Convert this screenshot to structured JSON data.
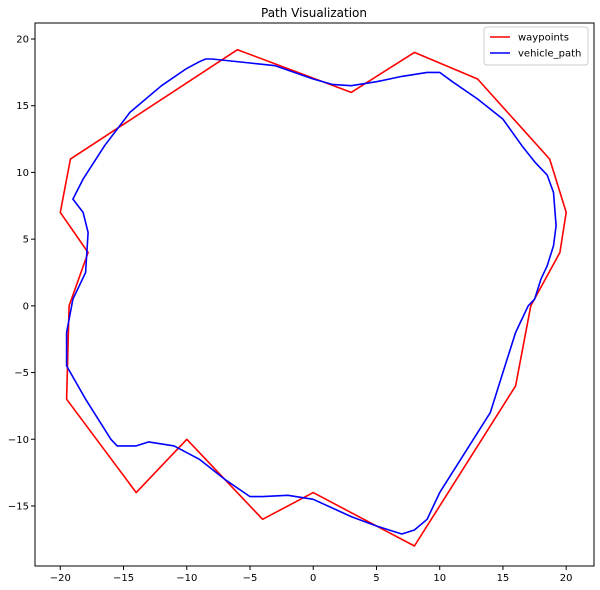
{
  "chart_data": {
    "type": "line",
    "title": "Path Visualization",
    "xlabel": "",
    "ylabel": "",
    "xlim": [
      -22,
      22.2
    ],
    "ylim": [
      -19.5,
      21.2
    ],
    "xticks": [
      -20,
      -15,
      -10,
      -5,
      0,
      5,
      10,
      15,
      20
    ],
    "yticks": [
      -15,
      -10,
      -5,
      0,
      5,
      10,
      15,
      20
    ],
    "grid": false,
    "legend_position": "upper-right",
    "series": [
      {
        "name": "waypoints",
        "color": "#ff0000",
        "x": [
          -20,
          -19.2,
          -6,
          3,
          8,
          13,
          18.7,
          20,
          19.5,
          17.2,
          16,
          8,
          0,
          -4,
          -10,
          -14,
          -19.5,
          -19.3,
          -17.8,
          -20
        ],
        "y": [
          7,
          11,
          19.2,
          16,
          19,
          17,
          11,
          7,
          4,
          0,
          -6,
          -18,
          -14,
          -16,
          -10,
          -14,
          -7,
          0,
          4,
          7
        ]
      },
      {
        "name": "vehicle_path",
        "color": "#0000ff",
        "x": [
          -19,
          -18.2,
          -16.5,
          -14.5,
          -12,
          -10,
          -9,
          -8.5,
          -8,
          -5,
          -3,
          0,
          1.5,
          3,
          5,
          7,
          9,
          10,
          11,
          13,
          15,
          16.5,
          17.5,
          18.5,
          19,
          19.2,
          19,
          18.5,
          18,
          17.5,
          17,
          16,
          15,
          14,
          12,
          10,
          9,
          8,
          7,
          5,
          3,
          0,
          -2,
          -4,
          -5,
          -7,
          -9,
          -11,
          -13,
          -14,
          -15.5,
          -16,
          -18,
          -19.5,
          -19.5,
          -19,
          -18,
          -17.8,
          -18.2,
          -19
        ],
        "y": [
          8,
          9.5,
          12,
          14.5,
          16.5,
          17.8,
          18.3,
          18.5,
          18.5,
          18.2,
          18,
          17,
          16.6,
          16.5,
          16.8,
          17.2,
          17.5,
          17.5,
          16.8,
          15.5,
          14,
          12,
          10.8,
          9.8,
          8.5,
          6,
          4.5,
          3,
          2,
          0.5,
          0,
          -2,
          -5,
          -8,
          -11,
          -14,
          -16,
          -16.8,
          -17.1,
          -16.5,
          -15.8,
          -14.5,
          -14.2,
          -14.3,
          -14.3,
          -13,
          -11.5,
          -10.5,
          -10.2,
          -10.5,
          -10.5,
          -10,
          -7,
          -4.5,
          -2,
          0.5,
          2.5,
          5.5,
          7,
          8
        ]
      }
    ]
  }
}
